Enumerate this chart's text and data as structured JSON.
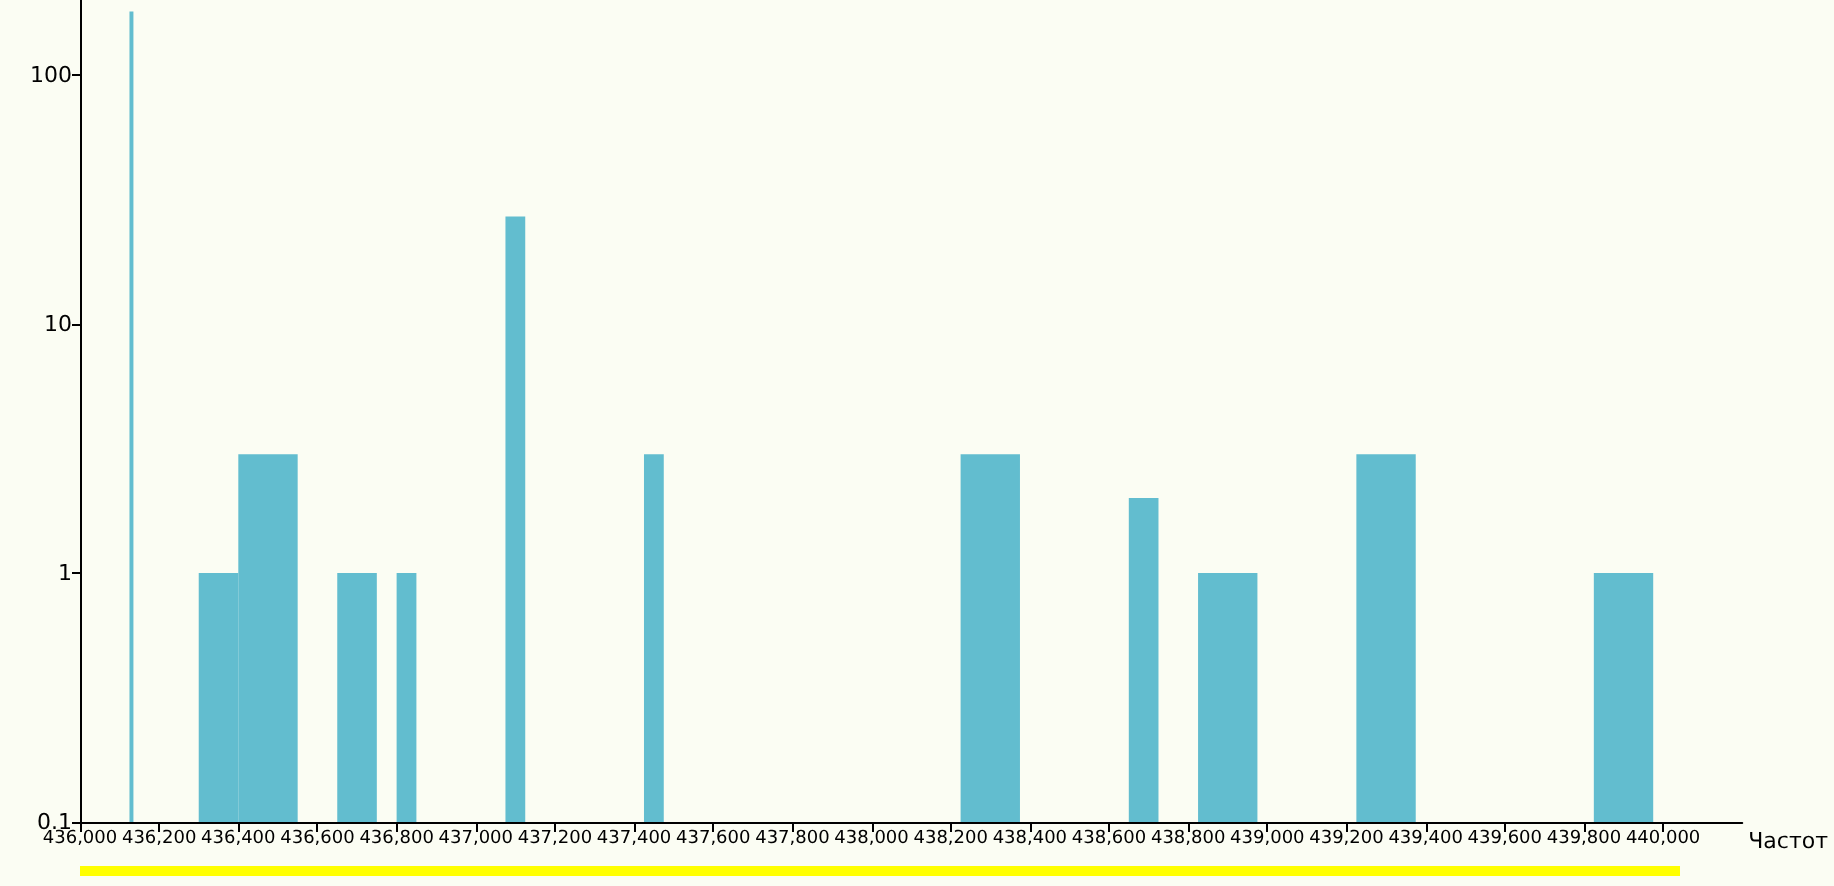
{
  "chart_data": {
    "type": "histogram",
    "xlabel": "Частот",
    "bins": [
      436125,
      436135,
      436300,
      436400,
      436550,
      436650,
      436750,
      436800,
      436850,
      437075,
      437125,
      437425,
      437475,
      438225,
      438375,
      438650,
      438725,
      438825,
      438975,
      439225,
      439375,
      439825,
      439975
    ],
    "values": [
      180,
      null,
      1,
      3,
      null,
      1,
      null,
      1,
      null,
      27,
      null,
      3,
      null,
      3,
      null,
      2,
      null,
      1,
      null,
      3,
      null,
      1
    ],
    "color": "#62bdcf",
    "log": true,
    "grid": false,
    "xlim": [
      436000,
      440200
    ],
    "xticks": [
      {
        "value": 436000,
        "label": "436,000"
      },
      {
        "value": 436200,
        "label": "436,200"
      },
      {
        "value": 436400,
        "label": "436,400"
      },
      {
        "value": 436600,
        "label": "436,600"
      },
      {
        "value": 436800,
        "label": "436,800"
      },
      {
        "value": 437000,
        "label": "437,000"
      },
      {
        "value": 437200,
        "label": "437,200"
      },
      {
        "value": 437400,
        "label": "437,400"
      },
      {
        "value": 437600,
        "label": "437,600"
      },
      {
        "value": 437800,
        "label": "437,800"
      },
      {
        "value": 438000,
        "label": "438,000"
      },
      {
        "value": 438200,
        "label": "438,200"
      },
      {
        "value": 438400,
        "label": "438,400"
      },
      {
        "value": 438600,
        "label": "438,600"
      },
      {
        "value": 438800,
        "label": "438,800"
      },
      {
        "value": 439000,
        "label": "439,000"
      },
      {
        "value": 439200,
        "label": "439,200"
      },
      {
        "value": 439400,
        "label": "439,400"
      },
      {
        "value": 439600,
        "label": "439,600"
      },
      {
        "value": 439800,
        "label": "439,800"
      },
      {
        "value": 440000,
        "label": "440,000"
      }
    ],
    "ylim": [
      0.1,
      200
    ],
    "yticks": [
      0.1,
      1,
      10,
      100
    ]
  }
}
